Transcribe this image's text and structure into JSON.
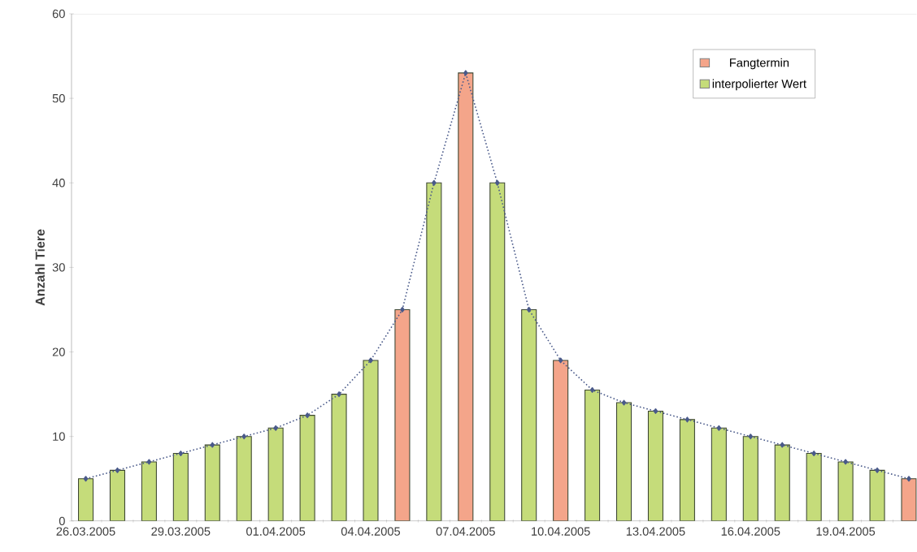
{
  "chart_data": {
    "type": "bar",
    "ylabel": "Anzahl Tiere",
    "categories": [
      "26.03.2005",
      null,
      null,
      "29.03.2005",
      null,
      null,
      "01.04.2005",
      null,
      null,
      "04.04.2005",
      null,
      null,
      "07.04.2005",
      null,
      null,
      "10.04.2005",
      null,
      null,
      "13.04.2005",
      null,
      null,
      "16.04.2005",
      null,
      null,
      "19.04.2005",
      null,
      null
    ],
    "series": [
      {
        "name": "Fangtermin",
        "color": "#f4a58a",
        "values": [
          null,
          null,
          null,
          null,
          null,
          null,
          null,
          null,
          null,
          null,
          25,
          null,
          53,
          null,
          null,
          19,
          null,
          null,
          null,
          null,
          null,
          null,
          null,
          null,
          null,
          null,
          5
        ]
      },
      {
        "name": "interpolierter Wert",
        "color": "#c5dc7a",
        "values": [
          5,
          6,
          7,
          8,
          9,
          10,
          11,
          12.5,
          15,
          19,
          null,
          40,
          null,
          40,
          25,
          null,
          15.5,
          14,
          13,
          12,
          11,
          10,
          9,
          8,
          7,
          6,
          null
        ]
      },
      {
        "type": "line",
        "color": "#4a5a8a",
        "marker": "diamond",
        "line_style": "dotted",
        "values": [
          5,
          6,
          7,
          8,
          9,
          10,
          11,
          12.5,
          15,
          19,
          25,
          40,
          53,
          40,
          25,
          19,
          15.5,
          14,
          13,
          12,
          11,
          10,
          9,
          8,
          7,
          6,
          5
        ]
      }
    ],
    "ylim": [
      0,
      60
    ],
    "yticks": [
      0,
      10,
      20,
      30,
      40,
      50,
      60
    ],
    "legend": "top right"
  }
}
